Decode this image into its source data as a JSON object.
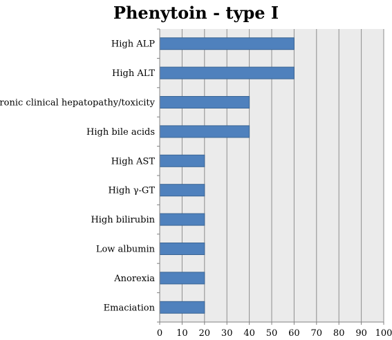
{
  "chart_data": {
    "type": "bar",
    "orientation": "horizontal",
    "title": "Phenytoin - type I",
    "xlabel": "",
    "ylabel": "",
    "categories": [
      "High ALP",
      "High ALT",
      "Chronic clinical hepatopathy/toxicity",
      "High bile acids",
      "High AST",
      "High γ-GT",
      "High bilirubin",
      "Low albumin",
      "Anorexia",
      "Emaciation"
    ],
    "values": [
      60,
      60,
      40,
      40,
      20,
      20,
      20,
      20,
      20,
      20
    ],
    "xlim": [
      0,
      100
    ],
    "xticks": [
      "0",
      "10",
      "20",
      "30",
      "40",
      "50",
      "60",
      "70",
      "80",
      "90",
      "100"
    ],
    "grid": "vertical",
    "legend": "none",
    "colors": {
      "bar_fill": "#4F81BD",
      "bar_stroke": "#3A6594",
      "plot_background": "#EBEBEB",
      "gridline": "#8C8C8C",
      "axis": "#808080"
    }
  }
}
